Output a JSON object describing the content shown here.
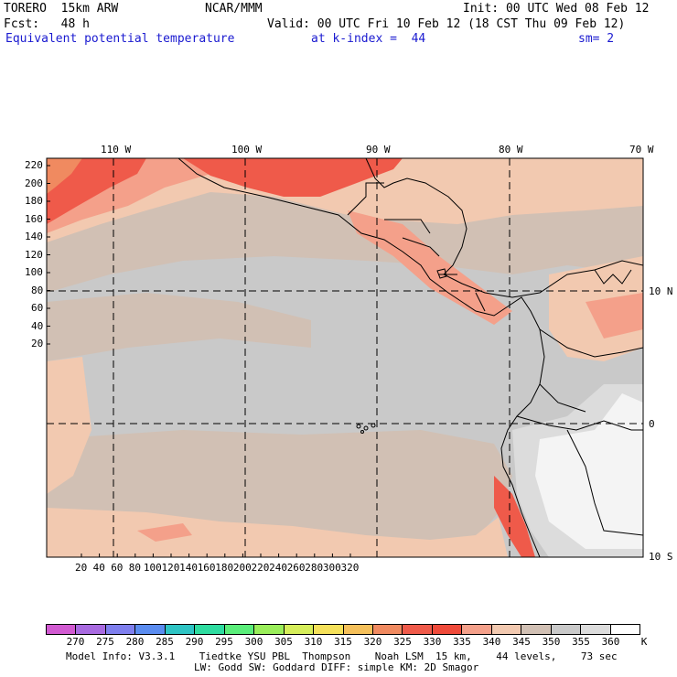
{
  "header": {
    "model": "TORERO  15km ARW",
    "center": "NCAR/MMM",
    "init": "Init: 00 UTC Wed 08 Feb 12",
    "fcst": "Fcst:   48 h",
    "valid": "Valid: 00 UTC Fri 10 Feb 12 (18 CST Thu 09 Feb 12)",
    "field": "Equivalent potential temperature",
    "level": "at k-index =  44",
    "smooth": "sm= 2"
  },
  "map": {
    "top_lon_labels": [
      "110 W",
      "100 W",
      "90 W",
      "80 W",
      "70 W"
    ],
    "right_lat_labels": [
      "10 N",
      "0",
      "10 S"
    ],
    "left_grid_ticks": [
      "220",
      "200",
      "180",
      "160",
      "140",
      "120",
      "100",
      "80",
      "60",
      "40",
      "20"
    ],
    "bottom_grid_ticks": [
      "20",
      "40",
      "60",
      "80",
      "100",
      "120",
      "140",
      "160",
      "180",
      "200",
      "220",
      "240",
      "260",
      "280",
      "300",
      "320"
    ],
    "colors": {
      "base": "#c9c9c9",
      "tan": "#d1c0b4",
      "peach": "#f2c9b0",
      "salmon": "#f4a08a",
      "red": "#ef5a4a",
      "orange": "#f08a60",
      "lightgray": "#dcdcdc",
      "white": "#f4f4f4"
    }
  },
  "colorbar": {
    "labels": [
      "270",
      "275",
      "280",
      "285",
      "290",
      "295",
      "300",
      "305",
      "310",
      "315",
      "320",
      "325",
      "330",
      "335",
      "340",
      "345",
      "350",
      "355",
      "360"
    ],
    "unit": "K",
    "colors": [
      "#d15ad1",
      "#a86ae0",
      "#7f7fee",
      "#5a8cf0",
      "#2ec4c4",
      "#2edca0",
      "#5aee7a",
      "#9aee5a",
      "#d6ee5a",
      "#f5e15a",
      "#f5c05a",
      "#f08a60",
      "#ef5a4a",
      "#ef4a3a",
      "#f4a08a",
      "#f2c9b0",
      "#d1c0b4",
      "#c9c9c9",
      "#dcdcdc",
      "#ffffff"
    ]
  },
  "footer": {
    "line1": "Model Info: V3.3.1    Tiedtke YSU PBL  Thompson    Noah LSM  15 km,    44 levels,    73 sec",
    "line2": "LW: Godd SW: Goddard DIFF: simple KM: 2D Smagor"
  }
}
